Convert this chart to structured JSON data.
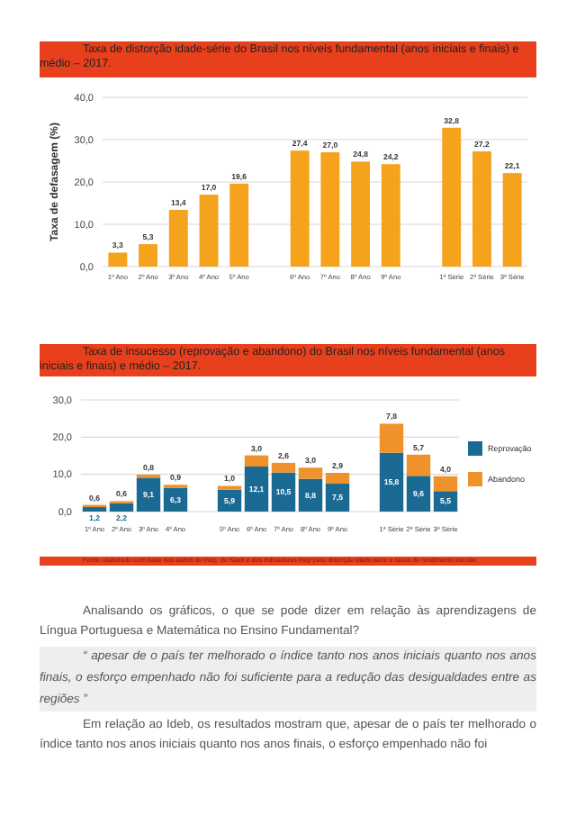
{
  "chart_data": [
    {
      "type": "bar",
      "title": "Taxa de distorção idade-série do Brasil nos níveis fundamental (anos iniciais e finais) e médio – 2017.",
      "ylabel": "Taxa de defasagem (%)",
      "categories": [
        "1º Ano",
        "2º Ano",
        "3º Ano",
        "4º Ano",
        "5º Ano",
        null,
        "6º Ano",
        "7º Ano",
        "8º Ano",
        "9º Ano",
        null,
        "1ª Série",
        "2ª Série",
        "3ª Série"
      ],
      "series": [
        {
          "color": "#f5a21d",
          "values": [
            3.3,
            5.3,
            13.4,
            17.0,
            19.6,
            null,
            27.4,
            27.0,
            24.8,
            24.2,
            null,
            32.8,
            27.2,
            22.1
          ],
          "value_labels": [
            "3,3",
            "5,3",
            "13,4",
            "17,0",
            "19,6",
            null,
            "27,4",
            "27,0",
            "24,8",
            "24,2",
            null,
            "32,8",
            "27,2",
            "22,1"
          ]
        }
      ],
      "ylim": [
        0,
        40
      ],
      "yticks": [
        {
          "value": 0,
          "label": "0,0"
        },
        {
          "value": 10,
          "label": "10,0"
        },
        {
          "value": 20,
          "label": "20,0"
        },
        {
          "value": 30,
          "label": "30,0"
        },
        {
          "value": 40,
          "label": "40,0"
        }
      ],
      "grid": "y",
      "legend": false
    },
    {
      "type": "bar",
      "stacked": true,
      "title": "Taxa de insucesso (reprovação e abandono) do Brasil nos níveis fundamental (anos iniciais e finais) e médio – 2017.",
      "categories": [
        "1º Ano",
        "2º Ano",
        "3º Ano",
        "4º Ano",
        null,
        "5º Ano",
        "6º Ano",
        "7º Ano",
        "8º Ano",
        "9º Ano",
        null,
        "1ª Série",
        "2ª Série",
        "3ª Série"
      ],
      "series": [
        {
          "name": "Reprovação",
          "color": "#1b6a93",
          "values": [
            1.2,
            2.2,
            9.1,
            6.3,
            null,
            5.9,
            12.1,
            10.5,
            8.8,
            7.5,
            null,
            15.8,
            9.6,
            5.5
          ],
          "value_labels": [
            "1,2",
            "2,2",
            "9,1",
            "6,3",
            null,
            "5,9",
            "12,1",
            "10,5",
            "8,8",
            "7,5",
            null,
            "15,8",
            "9,6",
            "5,5"
          ]
        },
        {
          "name": "Abandono",
          "color": "#f0922b",
          "values": [
            0.6,
            0.6,
            0.8,
            0.9,
            null,
            1.0,
            3.0,
            2.6,
            3.0,
            2.9,
            null,
            7.8,
            5.7,
            4.0
          ],
          "value_labels": [
            "0,6",
            "0,6",
            "0,8",
            "0,9",
            null,
            "1,0",
            "3,0",
            "2,6",
            "3,0",
            "2,9",
            null,
            "7,8",
            "5,7",
            "4,0"
          ]
        }
      ],
      "ylim": [
        0,
        30
      ],
      "yticks": [
        {
          "value": 0,
          "label": "0,0"
        },
        {
          "value": 10,
          "label": "10,0"
        },
        {
          "value": 20,
          "label": "20,0"
        },
        {
          "value": 30,
          "label": "30,0"
        }
      ],
      "grid": "y",
      "legend": "right",
      "annotations": [
        "Fonte: elaborado com base nos dados do Inep, do Saeb e dos indicadores Inep para distorção idade-série e taxas de rendimento escolar.",
        "Analisando os gráficos, o que se pode dizer em relação às aprendizagens de Língua Portuguesa e Matemática no Ensino Fundamental?",
        "“ apesar de o país ter melhorado o índice tanto nos anos iniciais quanto nos anos finais, o esforço empenhado não foi suficiente para a redução das desigualdades entre as regiões ”",
        "Em relação ao Ideb, os resultados mostram que, apesar de o país ter melhorado o índice tanto nos anos iniciais quanto nos anos finais, o esforço empenhado não foi"
      ]
    }
  ]
}
